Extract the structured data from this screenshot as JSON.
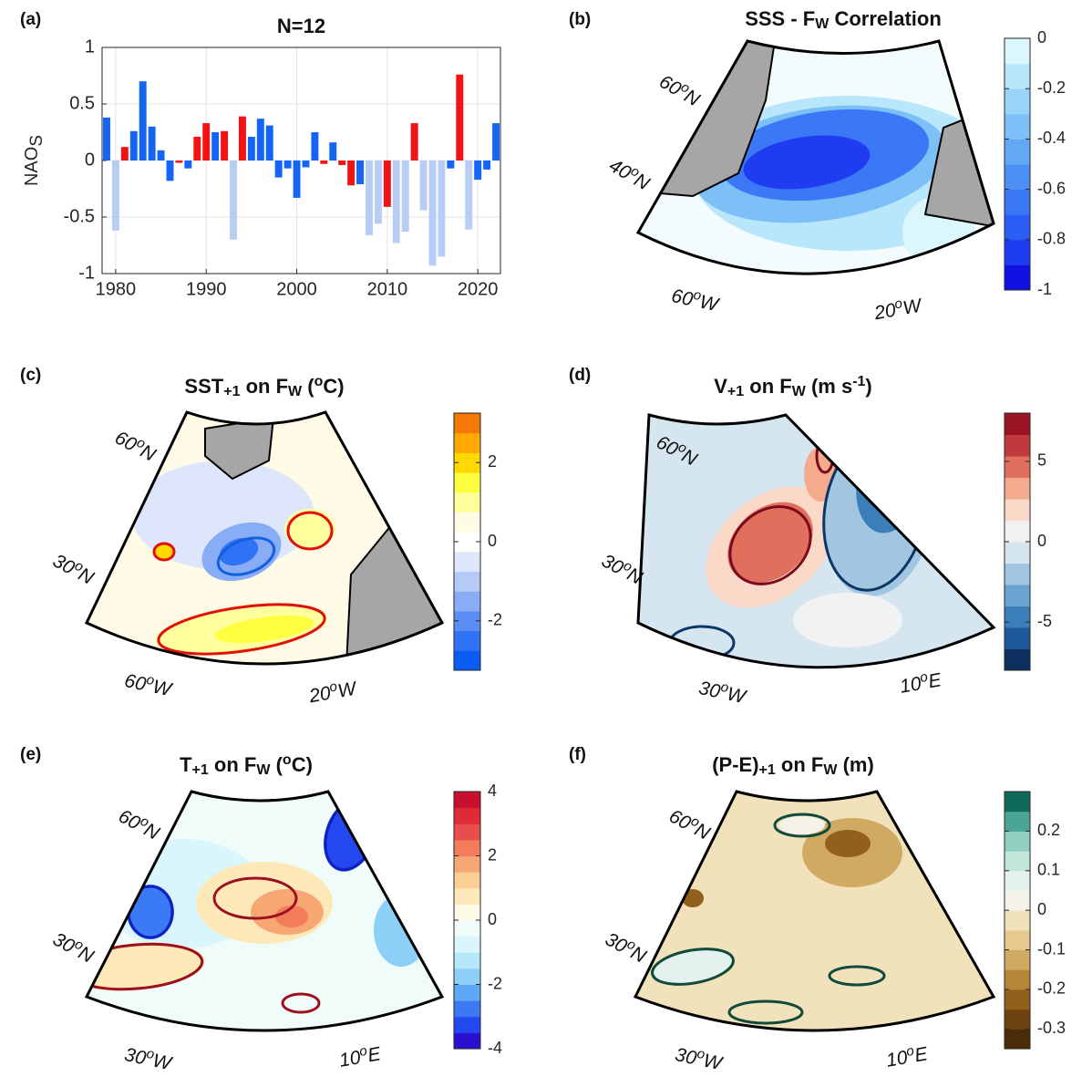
{
  "chart_data": [
    {
      "type": "bar",
      "panel": "(a)",
      "title": "N=12",
      "ylabel": [
        {
          "text": "NAO"
        },
        {
          "text": "S",
          "shift": "sub"
        }
      ],
      "x": [
        1979,
        1980,
        1981,
        1982,
        1983,
        1984,
        1985,
        1986,
        1987,
        1988,
        1989,
        1990,
        1991,
        1992,
        1993,
        1994,
        1995,
        1996,
        1997,
        1998,
        1999,
        2000,
        2001,
        2002,
        2003,
        2004,
        2005,
        2006,
        2007,
        2008,
        2009,
        2010,
        2011,
        2012,
        2013,
        2014,
        2015,
        2016,
        2017,
        2018,
        2019,
        2020,
        2021,
        2022
      ],
      "values": [
        0.38,
        -0.62,
        0.12,
        0.26,
        0.7,
        0.3,
        0.09,
        -0.18,
        -0.02,
        -0.07,
        0.21,
        0.33,
        0.25,
        0.26,
        -0.7,
        0.39,
        0.21,
        0.37,
        0.31,
        -0.15,
        -0.07,
        -0.33,
        -0.06,
        0.25,
        -0.03,
        0.16,
        -0.04,
        -0.22,
        -0.21,
        -0.66,
        -0.56,
        -0.41,
        -0.73,
        -0.63,
        0.33,
        -0.44,
        -0.93,
        -0.85,
        -0.07,
        0.76,
        -0.61,
        -0.17,
        -0.08,
        0.33
      ],
      "colors": [
        "#1565f4",
        "#b8cdf3",
        "#f21414",
        "#1565f4",
        "#1565f4",
        "#1565f4",
        "#1565f4",
        "#1565f4",
        "#f21414",
        "#1565f4",
        "#f21414",
        "#f21414",
        "#1565f4",
        "#f21414",
        "#b8cdf3",
        "#f21414",
        "#1565f4",
        "#1565f4",
        "#1565f4",
        "#1565f4",
        "#1565f4",
        "#1565f4",
        "#1565f4",
        "#1565f4",
        "#f21414",
        "#1565f4",
        "#f21414",
        "#f21414",
        "#1565f4",
        "#b8cdf3",
        "#b8cdf3",
        "#f21414",
        "#b8cdf3",
        "#b8cdf3",
        "#f21414",
        "#b8cdf3",
        "#b8cdf3",
        "#b8cdf3",
        "#1565f4",
        "#f21414",
        "#b8cdf3",
        "#1565f4",
        "#1565f4",
        "#1565f4"
      ],
      "xlim": [
        1978.5,
        2022.5
      ],
      "ylim": [
        -1,
        1
      ],
      "xticks": [
        1980,
        1990,
        2000,
        2010,
        2020
      ],
      "yticks": [
        -1,
        -0.5,
        0,
        0.5,
        1
      ],
      "grid": true
    },
    {
      "type": "map",
      "panel": "(b)",
      "title": [
        {
          "text": "SSS - F"
        },
        {
          "text": "W",
          "shift": "sub"
        },
        {
          "text": " Correlation"
        }
      ],
      "lat_labels": [
        [
          {
            "text": "60"
          },
          {
            "text": "o",
            "shift": "super"
          },
          {
            "text": "N"
          }
        ],
        [
          {
            "text": "40"
          },
          {
            "text": "o",
            "shift": "super"
          },
          {
            "text": "N"
          }
        ]
      ],
      "lon_labels": [
        [
          {
            "text": "60"
          },
          {
            "text": "o",
            "shift": "super"
          },
          {
            "text": "W"
          }
        ],
        [
          {
            "text": "20"
          },
          {
            "text": "o",
            "shift": "super"
          },
          {
            "text": "W"
          }
        ]
      ],
      "colorbar": {
        "clim": [
          -1,
          0
        ],
        "ticks": [
          0,
          -0.2,
          -0.4,
          -0.6,
          -0.8,
          -1
        ],
        "colors": [
          "#1010e0",
          "#1f3cf0",
          "#2a5ef5",
          "#3a78f5",
          "#4d90f5",
          "#62a8f5",
          "#7cc0f7",
          "#98d4f8",
          "#b8e6fa",
          "#dcf6fd"
        ]
      }
    },
    {
      "type": "map",
      "panel": "(c)",
      "title": [
        {
          "text": "SST"
        },
        {
          "text": "+1",
          "shift": "sub"
        },
        {
          "text": " on F"
        },
        {
          "text": "W",
          "shift": "sub"
        },
        {
          "text": " ("
        },
        {
          "text": "o",
          "shift": "super"
        },
        {
          "text": "C)"
        }
      ],
      "lat_labels": [
        [
          {
            "text": "60"
          },
          {
            "text": "o",
            "shift": "super"
          },
          {
            "text": "N"
          }
        ],
        [
          {
            "text": "30"
          },
          {
            "text": "o",
            "shift": "super"
          },
          {
            "text": "N"
          }
        ]
      ],
      "lon_labels": [
        [
          {
            "text": "60"
          },
          {
            "text": "o",
            "shift": "super"
          },
          {
            "text": "W"
          }
        ],
        [
          {
            "text": "20"
          },
          {
            "text": "o",
            "shift": "super"
          },
          {
            "text": "W"
          }
        ]
      ],
      "colorbar": {
        "clim": [
          -3.25,
          3.25
        ],
        "ticks": [
          2,
          0,
          -2
        ],
        "colors": [
          "#0a5cf5",
          "#2f72f5",
          "#5a8ef5",
          "#88acf5",
          "#b6caf8",
          "#dde6fb",
          "#ffffff",
          "#fffbe6",
          "#ffff9e",
          "#ffff40",
          "#ffd800",
          "#ffa800",
          "#f57800"
        ]
      }
    },
    {
      "type": "map",
      "panel": "(d)",
      "title": [
        {
          "text": "V"
        },
        {
          "text": "+1",
          "shift": "sub"
        },
        {
          "text": " on F"
        },
        {
          "text": "W",
          "shift": "sub"
        },
        {
          "text": " (m s"
        },
        {
          "text": "-1",
          "shift": "super"
        },
        {
          "text": ")"
        }
      ],
      "lat_labels": [
        [
          {
            "text": "60"
          },
          {
            "text": "o",
            "shift": "super"
          },
          {
            "text": "N"
          }
        ],
        [
          {
            "text": "30"
          },
          {
            "text": "o",
            "shift": "super"
          },
          {
            "text": "N"
          }
        ]
      ],
      "lon_labels": [
        [
          {
            "text": "30"
          },
          {
            "text": "o",
            "shift": "super"
          },
          {
            "text": "W"
          }
        ],
        [
          {
            "text": "10"
          },
          {
            "text": "o",
            "shift": "super"
          },
          {
            "text": "E"
          }
        ]
      ],
      "colorbar": {
        "clim": [
          -8,
          8
        ],
        "ticks": [
          5,
          0,
          -5
        ],
        "colors": [
          "#0d2f5e",
          "#1e5a99",
          "#3a7fba",
          "#6aa3cf",
          "#a3c6e0",
          "#d6e6f1",
          "#f2f2f2",
          "#fad9c8",
          "#f4aa8c",
          "#e0705d",
          "#c0393c",
          "#9b1424"
        ]
      }
    },
    {
      "type": "map",
      "panel": "(e)",
      "title": [
        {
          "text": "T"
        },
        {
          "text": "+1",
          "shift": "sub"
        },
        {
          "text": " on F"
        },
        {
          "text": "W",
          "shift": "sub"
        },
        {
          "text": " ("
        },
        {
          "text": "o",
          "shift": "super"
        },
        {
          "text": "C)"
        }
      ],
      "lat_labels": [
        [
          {
            "text": "60"
          },
          {
            "text": "o",
            "shift": "super"
          },
          {
            "text": "N"
          }
        ],
        [
          {
            "text": "30"
          },
          {
            "text": "o",
            "shift": "super"
          },
          {
            "text": "N"
          }
        ]
      ],
      "lon_labels": [
        [
          {
            "text": "30"
          },
          {
            "text": "o",
            "shift": "super"
          },
          {
            "text": "W"
          }
        ],
        [
          {
            "text": "10"
          },
          {
            "text": "o",
            "shift": "super"
          },
          {
            "text": "E"
          }
        ]
      ],
      "colorbar": {
        "clim": [
          -4,
          4
        ],
        "ticks": [
          4,
          2,
          0,
          -2,
          -4
        ],
        "colors": [
          "#2a10d0",
          "#2448f0",
          "#3a7af5",
          "#5fa8f5",
          "#8ccff7",
          "#b5e8fa",
          "#d8f6fb",
          "#f0fcfa",
          "#fdfbe8",
          "#fde9b8",
          "#fbcf95",
          "#f7a774",
          "#f37c5a",
          "#ea4e4a",
          "#e02a35",
          "#c8102e"
        ]
      }
    },
    {
      "type": "map",
      "panel": "(f)",
      "title": [
        {
          "text": "(P-E)"
        },
        {
          "text": "+1",
          "shift": "sub"
        },
        {
          "text": " on F"
        },
        {
          "text": "W",
          "shift": "sub"
        },
        {
          "text": " (m)"
        }
      ],
      "lat_labels": [
        [
          {
            "text": "60"
          },
          {
            "text": "o",
            "shift": "super"
          },
          {
            "text": "N"
          }
        ],
        [
          {
            "text": "30"
          },
          {
            "text": "o",
            "shift": "super"
          },
          {
            "text": "N"
          }
        ]
      ],
      "lon_labels": [
        [
          {
            "text": "30"
          },
          {
            "text": "o",
            "shift": "super"
          },
          {
            "text": "W"
          }
        ],
        [
          {
            "text": "10"
          },
          {
            "text": "o",
            "shift": "super"
          },
          {
            "text": "E"
          }
        ]
      ],
      "colorbar": {
        "clim": [
          -0.35,
          0.3
        ],
        "ticks": [
          0.2,
          0.1,
          0,
          -0.1,
          -0.2,
          -0.3
        ],
        "colors": [
          "#4a2d08",
          "#6e420e",
          "#93601b",
          "#b58538",
          "#d0a962",
          "#e5c98f",
          "#f2e2bb",
          "#f5f2ea",
          "#e3f2ef",
          "#c2e6dc",
          "#8fd0c0",
          "#4aa597",
          "#0f6a5c"
        ]
      }
    }
  ]
}
